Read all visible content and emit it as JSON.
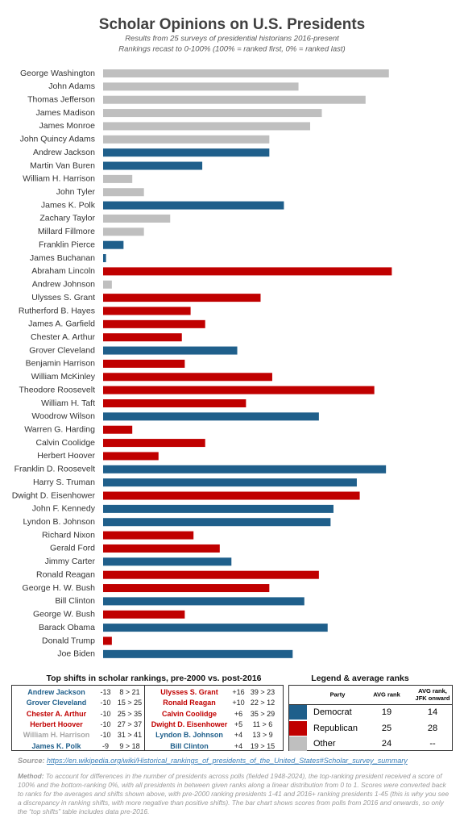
{
  "chart_data": {
    "type": "bar",
    "orientation": "horizontal",
    "title": "Scholar Opinions on U.S. Presidents",
    "subtitle": [
      "Results from 25 surveys of presidential historians 2016-present",
      "Rankings recast to 0-100% (100% = ranked first, 0% = ranked last)"
    ],
    "xlim": [
      0,
      100
    ],
    "categories": [
      "George Washington",
      "John Adams",
      "Thomas Jefferson",
      "James Madison",
      "James Monroe",
      "John Quincy Adams",
      "Andrew Jackson",
      "Martin Van Buren",
      "William H. Harrison",
      "John Tyler",
      "James K. Polk",
      "Zachary Taylor",
      "Millard Fillmore",
      "Franklin Pierce",
      "James Buchanan",
      "Abraham Lincoln",
      "Andrew Johnson",
      "Ulysses S. Grant",
      "Rutherford B. Hayes",
      "James A. Garfield",
      "Chester A. Arthur",
      "Grover Cleveland",
      "Benjamin Harrison",
      "William McKinley",
      "Theodore Roosevelt",
      "William H. Taft",
      "Woodrow Wilson",
      "Warren G. Harding",
      "Calvin Coolidge",
      "Herbert Hoover",
      "Franklin D. Roosevelt",
      "Harry S. Truman",
      "Dwight D. Eisenhower",
      "John F. Kennedy",
      "Lyndon B. Johnson",
      "Richard Nixon",
      "Gerald Ford",
      "Jimmy Carter",
      "Ronald Reagan",
      "George H. W. Bush",
      "Bill Clinton",
      "George W. Bush",
      "Barack Obama",
      "Donald Trump",
      "Joe Biden"
    ],
    "values": [
      98,
      67,
      90,
      75,
      71,
      57,
      57,
      34,
      10,
      14,
      62,
      23,
      14,
      7,
      1,
      99,
      3,
      54,
      30,
      35,
      27,
      46,
      28,
      58,
      93,
      49,
      74,
      10,
      35,
      19,
      97,
      87,
      88,
      79,
      78,
      31,
      40,
      44,
      74,
      57,
      69,
      28,
      77,
      3,
      65
    ],
    "colors": [
      "#bfbfbf",
      "#bfbfbf",
      "#bfbfbf",
      "#bfbfbf",
      "#bfbfbf",
      "#bfbfbf",
      "#1f5f8b",
      "#1f5f8b",
      "#bfbfbf",
      "#bfbfbf",
      "#1f5f8b",
      "#bfbfbf",
      "#bfbfbf",
      "#1f5f8b",
      "#1f5f8b",
      "#c00000",
      "#bfbfbf",
      "#c00000",
      "#c00000",
      "#c00000",
      "#c00000",
      "#1f5f8b",
      "#c00000",
      "#c00000",
      "#c00000",
      "#c00000",
      "#1f5f8b",
      "#c00000",
      "#c00000",
      "#c00000",
      "#1f5f8b",
      "#1f5f8b",
      "#c00000",
      "#1f5f8b",
      "#1f5f8b",
      "#c00000",
      "#c00000",
      "#1f5f8b",
      "#c00000",
      "#c00000",
      "#1f5f8b",
      "#c00000",
      "#1f5f8b",
      "#c00000",
      "#1f5f8b"
    ]
  },
  "shifts_table": {
    "title": "Top shifts in scholar rankings, pre-2000 vs. post-2016",
    "rows": [
      {
        "left": {
          "name": "Andrew Jackson",
          "color": "#1f5f8b",
          "shift": "-13",
          "ranks": "8 > 21"
        },
        "right": {
          "name": "Ulysses S. Grant",
          "color": "#c00000",
          "shift": "+16",
          "ranks": "39 > 23"
        }
      },
      {
        "left": {
          "name": "Grover Cleveland",
          "color": "#1f5f8b",
          "shift": "-10",
          "ranks": "15 > 25"
        },
        "right": {
          "name": "Ronald Reagan",
          "color": "#c00000",
          "shift": "+10",
          "ranks": "22 > 12"
        }
      },
      {
        "left": {
          "name": "Chester A. Arthur",
          "color": "#c00000",
          "shift": "-10",
          "ranks": "25 > 35"
        },
        "right": {
          "name": "Calvin Coolidge",
          "color": "#c00000",
          "shift": "+6",
          "ranks": "35 > 29"
        }
      },
      {
        "left": {
          "name": "Herbert Hoover",
          "color": "#c00000",
          "shift": "-10",
          "ranks": "27 > 37"
        },
        "right": {
          "name": "Dwight D. Eisenhower",
          "color": "#c00000",
          "shift": "+5",
          "ranks": "11 > 6"
        }
      },
      {
        "left": {
          "name": "William H. Harrison",
          "color": "#a6a6a6",
          "shift": "-10",
          "ranks": "31 > 41"
        },
        "right": {
          "name": "Lyndon B. Johnson",
          "color": "#1f5f8b",
          "shift": "+4",
          "ranks": "13 > 9"
        }
      },
      {
        "left": {
          "name": "James K. Polk",
          "color": "#1f5f8b",
          "shift": "-9",
          "ranks": "9 > 18"
        },
        "right": {
          "name": "Bill Clinton",
          "color": "#1f5f8b",
          "shift": "+4",
          "ranks": "19 > 15"
        }
      }
    ]
  },
  "legend_table": {
    "title": "Legend & average ranks",
    "headers": [
      "Party",
      "AVG rank",
      "AVG rank, JFK onward"
    ],
    "rows": [
      {
        "party": "Democrat",
        "color": "#1f5f8b",
        "avg": 19,
        "jfk": 14
      },
      {
        "party": "Republican",
        "color": "#c00000",
        "avg": 25,
        "jfk": 28
      },
      {
        "party": "Other",
        "color": "#bfbfbf",
        "avg": 24,
        "jfk": "--"
      }
    ]
  },
  "source": {
    "label": "Source:",
    "url": "https://en.wikipedia.org/wiki/Historical_rankings_of_presidents_of_the_United_States#Scholar_survey_summary"
  },
  "method": {
    "label": "Method:",
    "text": "To account for differences in the number of presidents across polls (fielded 1948-2024), the top-ranking president received a score of 100% and the bottom-ranking 0%, with all presidents in between given ranks along a linear distribution from 0 to 1. Scores were converted back to ranks for the averages and shifts shown above, with pre-2000 ranking presidents 1-41 and 2016+ ranking presidents 1-45 (this is why you see a discrepancy in ranking shifts, with more negative than positive shifts). The bar chart shows scores from polls from 2016 and onwards, so only the “top shifts” table includes data pre-2016."
  }
}
